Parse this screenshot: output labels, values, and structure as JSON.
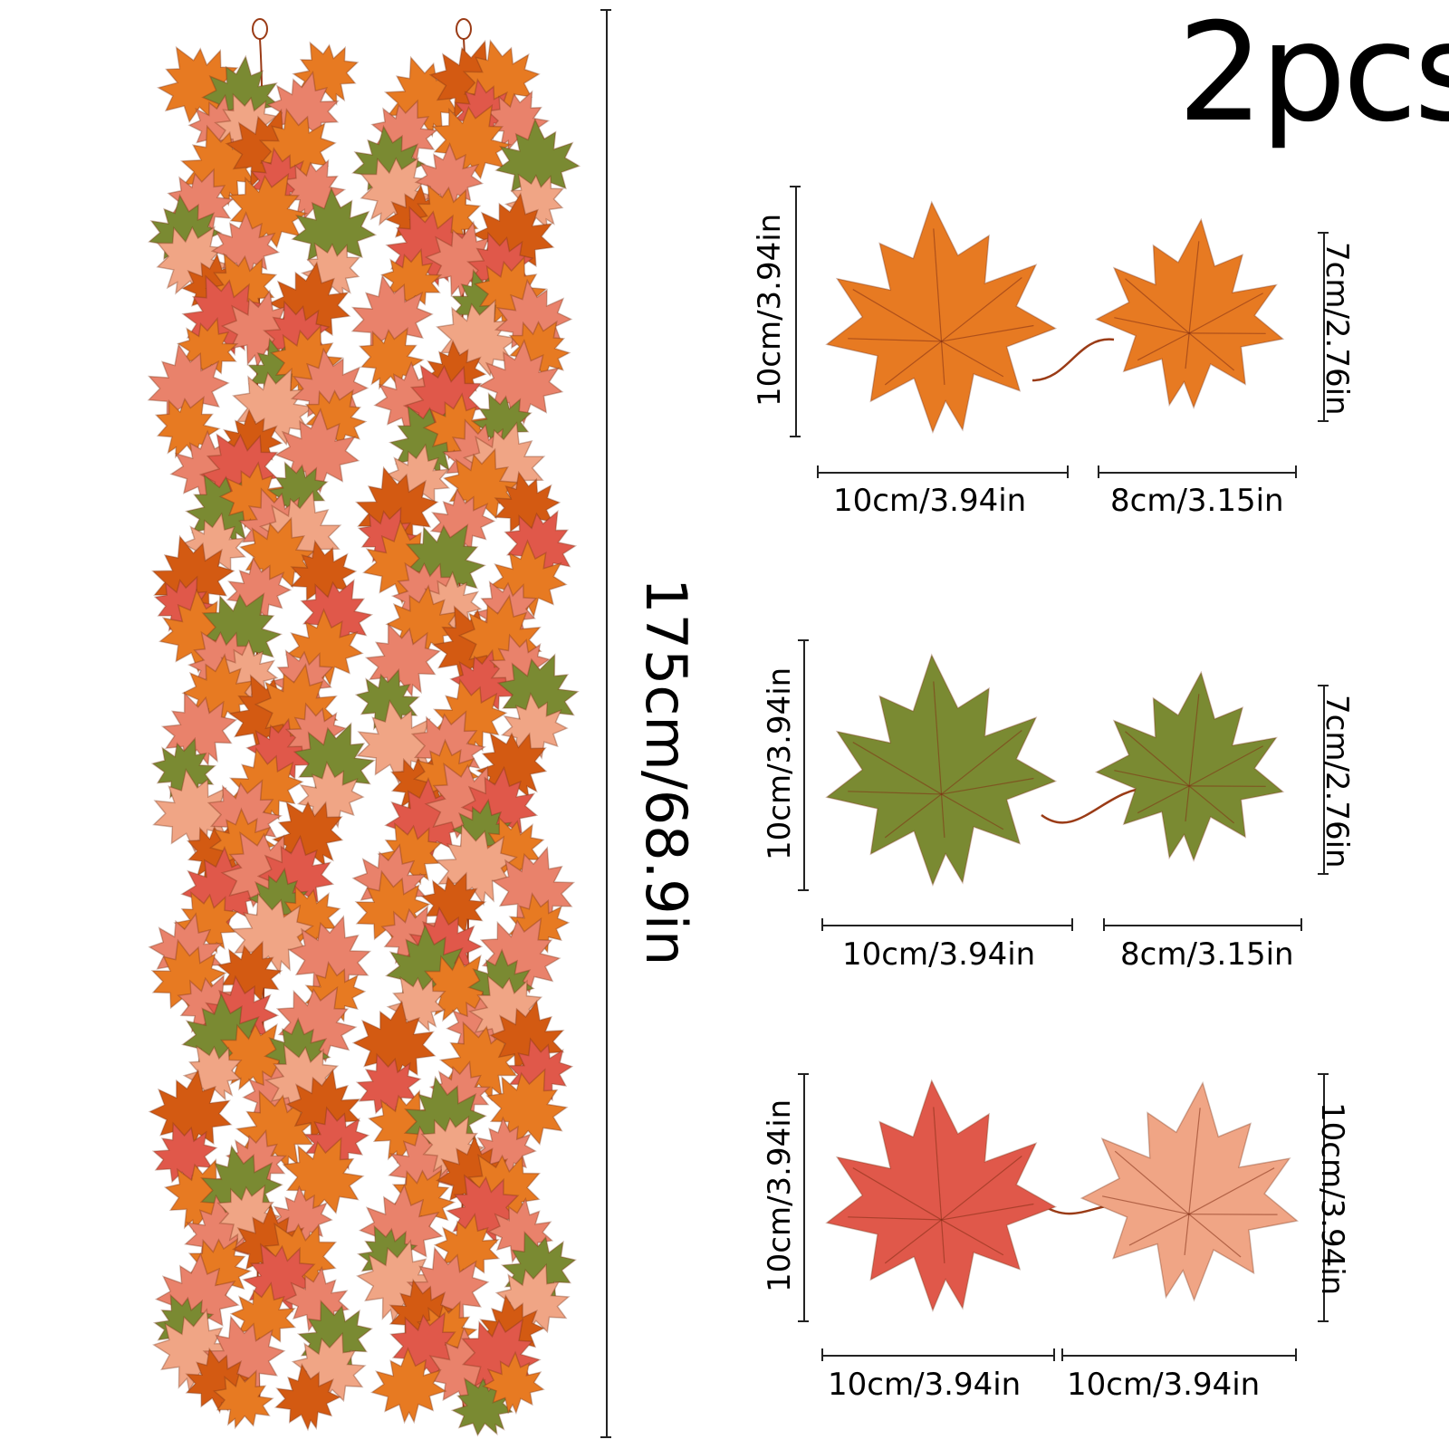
{
  "quantity_label": "2pcs",
  "garland_length_label": "175cm/68.9in",
  "colors": {
    "orange": "#e77a22",
    "deep_orange": "#d35a12",
    "green": "#7a8a32",
    "pink": "#e9826b",
    "salmon": "#f0a585",
    "red": "#e0584a",
    "stem": "#9a3b16"
  },
  "leaf_pairs": [
    {
      "name": "orange",
      "left_height": "10cm/3.94in",
      "left_width": "10cm/3.94in",
      "right_width": "8cm/3.15in",
      "right_height": "7cm/2.76in"
    },
    {
      "name": "green",
      "left_height": "10cm/3.94in",
      "left_width": "10cm/3.94in",
      "right_width": "8cm/3.15in",
      "right_height": "7cm/2.76in"
    },
    {
      "name": "red",
      "left_height": "10cm/3.94in",
      "left_width": "10cm/3.94in",
      "right_width": "10cm/3.94in",
      "right_height": "10cm/3.94in"
    }
  ]
}
